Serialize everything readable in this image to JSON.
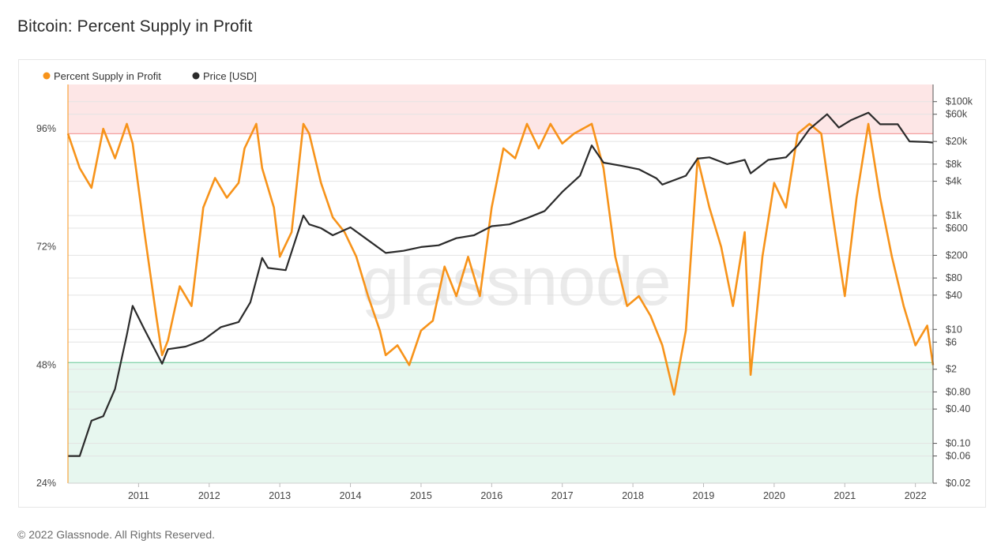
{
  "title": "Bitcoin: Percent Supply in Profit",
  "footer": "© 2022 Glassnode. All Rights Reserved.",
  "watermark": "glassnode",
  "colors": {
    "supply": "#f7931a",
    "price": "#2b2b2b",
    "upper_band": "#fde6e6",
    "upper_line": "#f4a0a0",
    "lower_band": "#e7f7ef",
    "lower_line": "#7fd1a7"
  },
  "chart_data": {
    "type": "line",
    "title": "Bitcoin: Percent Supply in Profit",
    "legend_placement": "top-left",
    "grid": true,
    "x_ticks": [
      "2011",
      "2012",
      "2013",
      "2014",
      "2015",
      "2016",
      "2017",
      "2018",
      "2019",
      "2020",
      "2021",
      "2022"
    ],
    "xlim": [
      "2010-07",
      "2022-10"
    ],
    "left_axis": {
      "ticks": [
        "96%",
        "72%",
        "48%",
        "24%"
      ],
      "range": [
        24,
        105
      ]
    },
    "right_axis": {
      "scale": "log",
      "ticks": [
        "$100k",
        "$60k",
        "$20k",
        "$8k",
        "$4k",
        "$1k",
        "$600",
        "$200",
        "$80",
        "$40",
        "$10",
        "$6",
        "$2",
        "$0.80",
        "$0.40",
        "$0.10",
        "$0.06",
        "$0.02"
      ],
      "range": [
        0.02,
        200000
      ]
    },
    "bands": [
      {
        "name": "upper",
        "from": 95,
        "to": 105
      },
      {
        "name": "lower",
        "from": 24,
        "to": 48.5
      }
    ],
    "series": [
      {
        "name": "Percent Supply in Profit",
        "axis": "left",
        "x": [
          "2010-07",
          "2010-09",
          "2010-11",
          "2011-01",
          "2011-03",
          "2011-05",
          "2011-06",
          "2011-08",
          "2011-10",
          "2011-11",
          "2011-12",
          "2012-02",
          "2012-04",
          "2012-06",
          "2012-08",
          "2012-10",
          "2012-12",
          "2013-01",
          "2013-03",
          "2013-04",
          "2013-06",
          "2013-07",
          "2013-09",
          "2013-11",
          "2013-12",
          "2014-02",
          "2014-04",
          "2014-06",
          "2014-08",
          "2014-10",
          "2014-12",
          "2015-01",
          "2015-03",
          "2015-05",
          "2015-07",
          "2015-09",
          "2015-11",
          "2016-01",
          "2016-03",
          "2016-05",
          "2016-07",
          "2016-09",
          "2016-11",
          "2017-01",
          "2017-03",
          "2017-05",
          "2017-07",
          "2017-09",
          "2017-12",
          "2018-02",
          "2018-04",
          "2018-06",
          "2018-08",
          "2018-10",
          "2018-12",
          "2019-02",
          "2019-04",
          "2019-06",
          "2019-08",
          "2019-10",
          "2019-12",
          "2020-02",
          "2020-03",
          "2020-05",
          "2020-07",
          "2020-09",
          "2020-11",
          "2021-01",
          "2021-03",
          "2021-05",
          "2021-07",
          "2021-09",
          "2021-11",
          "2022-01",
          "2022-03",
          "2022-05",
          "2022-07",
          "2022-09",
          "2022-10"
        ],
        "values": [
          95,
          88,
          84,
          96,
          90,
          97,
          93,
          75,
          58,
          50,
          53,
          64,
          60,
          80,
          86,
          82,
          85,
          92,
          97,
          88,
          80,
          70,
          75,
          97,
          95,
          85,
          78,
          75,
          70,
          62,
          55,
          50,
          52,
          48,
          55,
          57,
          68,
          62,
          70,
          62,
          80,
          92,
          90,
          97,
          92,
          97,
          93,
          95,
          97,
          88,
          70,
          60,
          62,
          58,
          52,
          42,
          55,
          90,
          80,
          72,
          60,
          75,
          46,
          70,
          85,
          80,
          95,
          97,
          95,
          78,
          62,
          82,
          97,
          82,
          70,
          60,
          52,
          56,
          48
        ]
      },
      {
        "name": "Price [USD]",
        "axis": "right",
        "x": [
          "2010-07",
          "2010-09",
          "2010-11",
          "2011-01",
          "2011-03",
          "2011-05",
          "2011-06",
          "2011-08",
          "2011-10",
          "2011-11",
          "2011-12",
          "2012-03",
          "2012-06",
          "2012-09",
          "2012-12",
          "2013-02",
          "2013-04",
          "2013-05",
          "2013-08",
          "2013-11",
          "2013-12",
          "2014-02",
          "2014-04",
          "2014-07",
          "2014-10",
          "2015-01",
          "2015-04",
          "2015-07",
          "2015-10",
          "2016-01",
          "2016-04",
          "2016-07",
          "2016-10",
          "2017-01",
          "2017-04",
          "2017-07",
          "2017-10",
          "2017-12",
          "2018-02",
          "2018-05",
          "2018-08",
          "2018-11",
          "2018-12",
          "2019-04",
          "2019-06",
          "2019-08",
          "2019-11",
          "2020-02",
          "2020-03",
          "2020-06",
          "2020-09",
          "2020-11",
          "2021-01",
          "2021-04",
          "2021-06",
          "2021-08",
          "2021-11",
          "2022-01",
          "2022-04",
          "2022-06",
          "2022-09",
          "2022-10"
        ],
        "values": [
          0.06,
          0.06,
          0.25,
          0.3,
          0.9,
          8,
          26,
          10,
          4,
          2.5,
          4.5,
          5,
          6.5,
          11,
          13.5,
          30,
          180,
          120,
          110,
          1000,
          700,
          600,
          450,
          620,
          370,
          220,
          240,
          280,
          300,
          400,
          450,
          650,
          700,
          900,
          1200,
          2600,
          5000,
          17000,
          8500,
          7500,
          6500,
          4500,
          3500,
          5000,
          10000,
          10500,
          8000,
          9500,
          5500,
          9500,
          10500,
          17000,
          33000,
          60000,
          35000,
          47000,
          64000,
          40000,
          40000,
          20000,
          19500,
          19000
        ]
      }
    ]
  }
}
